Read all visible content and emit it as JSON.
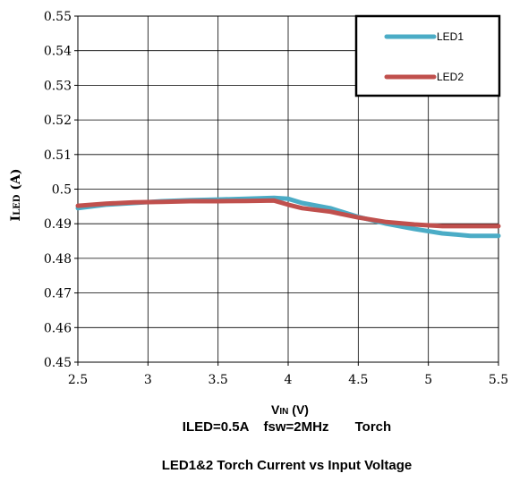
{
  "chart_data": {
    "type": "line",
    "title": "LED1&2 Torch Current vs Input Voltage",
    "subtitle": "ILED=0.5A    fsw=2MHz       Torch",
    "xlabel_main": "V",
    "xlabel_sub": "IN",
    "xlabel_unit": " (V)",
    "ylabel_main": "I",
    "ylabel_sub": "LED",
    "ylabel_unit": " (A)",
    "xlim": [
      2.5,
      5.5
    ],
    "ylim": [
      0.45,
      0.55
    ],
    "x_ticks": [
      "2.5",
      "3",
      "3.5",
      "4",
      "4.5",
      "5",
      "5.5"
    ],
    "y_ticks": [
      "0.45",
      "0.46",
      "0.47",
      "0.48",
      "0.49",
      "0.5",
      "0.51",
      "0.52",
      "0.53",
      "0.54",
      "0.55"
    ],
    "grid": true,
    "legend_position": "top-right",
    "series": [
      {
        "name": "LED1",
        "color": "#4BACC6",
        "x": [
          2.5,
          2.7,
          2.9,
          3.1,
          3.3,
          3.5,
          3.7,
          3.9,
          4.0,
          4.1,
          4.3,
          4.5,
          4.7,
          4.9,
          5.1,
          5.3,
          5.5
        ],
        "y": [
          0.4945,
          0.4955,
          0.496,
          0.4965,
          0.4968,
          0.497,
          0.4972,
          0.4975,
          0.4972,
          0.496,
          0.4945,
          0.492,
          0.49,
          0.4885,
          0.4872,
          0.4865,
          0.4865
        ]
      },
      {
        "name": "LED2",
        "color": "#C0504D",
        "x": [
          2.5,
          2.7,
          2.9,
          3.1,
          3.3,
          3.5,
          3.7,
          3.9,
          4.0,
          4.1,
          4.3,
          4.5,
          4.7,
          4.9,
          5.1,
          5.3,
          5.5
        ],
        "y": [
          0.4952,
          0.4958,
          0.4962,
          0.4963,
          0.4965,
          0.4965,
          0.4966,
          0.4967,
          0.4955,
          0.4945,
          0.4935,
          0.4918,
          0.4905,
          0.4898,
          0.4893,
          0.4893,
          0.4893
        ]
      }
    ]
  }
}
